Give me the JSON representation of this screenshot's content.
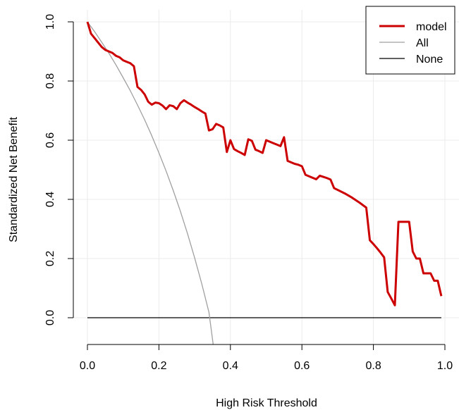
{
  "chart_data": {
    "type": "line",
    "title": "",
    "xlabel": "High Risk Threshold",
    "ylabel": "Standardized Net Benefit",
    "xlim": [
      0,
      1
    ],
    "ylim": [
      -0.1,
      1.0
    ],
    "grid": true,
    "legend_position": "top-right",
    "x_ticks": [
      "0.0",
      "0.2",
      "0.4",
      "0.6",
      "0.8",
      "1.0"
    ],
    "y_ticks": [
      "0.0",
      "0.2",
      "0.4",
      "0.6",
      "0.8",
      "1.0"
    ],
    "colors": {
      "model": "#cc0000",
      "all": "#a0a0a0",
      "none": "#000000",
      "grid": "#ebebeb"
    },
    "series": [
      {
        "name": "model",
        "x": [
          0.0,
          0.01,
          0.02,
          0.03,
          0.04,
          0.05,
          0.06,
          0.07,
          0.08,
          0.09,
          0.1,
          0.11,
          0.12,
          0.13,
          0.14,
          0.15,
          0.16,
          0.17,
          0.18,
          0.19,
          0.2,
          0.21,
          0.22,
          0.23,
          0.24,
          0.25,
          0.26,
          0.27,
          0.28,
          0.29,
          0.3,
          0.31,
          0.32,
          0.33,
          0.34,
          0.35,
          0.36,
          0.37,
          0.38,
          0.39,
          0.4,
          0.41,
          0.42,
          0.43,
          0.44,
          0.45,
          0.46,
          0.47,
          0.48,
          0.49,
          0.5,
          0.51,
          0.52,
          0.53,
          0.54,
          0.55,
          0.56,
          0.57,
          0.58,
          0.59,
          0.6,
          0.61,
          0.62,
          0.63,
          0.64,
          0.65,
          0.66,
          0.67,
          0.68,
          0.69,
          0.7,
          0.72,
          0.74,
          0.76,
          0.78,
          0.79,
          0.8,
          0.81,
          0.82,
          0.83,
          0.84,
          0.85,
          0.86,
          0.87,
          0.88,
          0.89,
          0.9,
          0.91,
          0.92,
          0.93,
          0.94,
          0.95,
          0.96,
          0.97,
          0.98,
          0.99
        ],
        "y": [
          1.0,
          0.96,
          0.945,
          0.93,
          0.915,
          0.905,
          0.9,
          0.895,
          0.885,
          0.88,
          0.87,
          0.865,
          0.86,
          0.85,
          0.78,
          0.77,
          0.755,
          0.73,
          0.72,
          0.727,
          0.725,
          0.717,
          0.705,
          0.718,
          0.715,
          0.705,
          0.725,
          0.735,
          0.727,
          0.72,
          0.712,
          0.705,
          0.697,
          0.69,
          0.633,
          0.637,
          0.655,
          0.65,
          0.643,
          0.56,
          0.6,
          0.57,
          0.563,
          0.557,
          0.55,
          0.603,
          0.598,
          0.568,
          0.563,
          0.557,
          0.6,
          0.595,
          0.59,
          0.585,
          0.58,
          0.61,
          0.53,
          0.525,
          0.52,
          0.517,
          0.512,
          0.483,
          0.478,
          0.473,
          0.468,
          0.48,
          0.476,
          0.472,
          0.467,
          0.438,
          0.432,
          0.42,
          0.406,
          0.39,
          0.372,
          0.262,
          0.249,
          0.235,
          0.22,
          0.204,
          0.087,
          0.065,
          0.042,
          0.324,
          0.324,
          0.324,
          0.324,
          0.224,
          0.2,
          0.2,
          0.15,
          0.15,
          0.15,
          0.125,
          0.125,
          0.073
        ]
      },
      {
        "name": "All",
        "x": [
          0.0,
          0.02,
          0.04,
          0.06,
          0.08,
          0.1,
          0.12,
          0.14,
          0.16,
          0.18,
          0.2,
          0.22,
          0.24,
          0.26,
          0.28,
          0.3,
          0.32,
          0.34,
          0.352
        ],
        "y": [
          1.0,
          0.967,
          0.931,
          0.894,
          0.854,
          0.811,
          0.767,
          0.719,
          0.669,
          0.615,
          0.557,
          0.496,
          0.43,
          0.36,
          0.284,
          0.202,
          0.114,
          0.018,
          -0.092
        ]
      },
      {
        "name": "None",
        "x": [
          0.0,
          0.99
        ],
        "y": [
          0.0,
          0.0
        ]
      }
    ]
  }
}
